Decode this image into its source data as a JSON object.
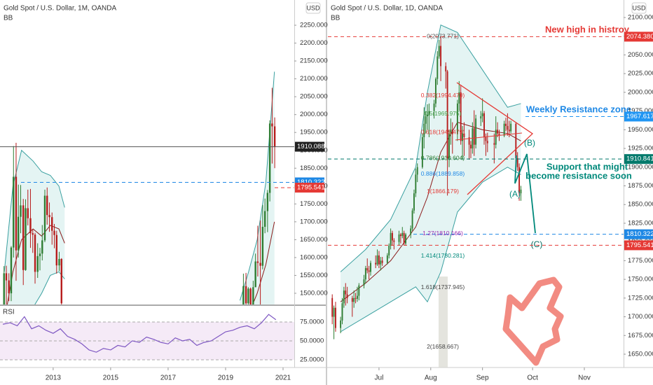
{
  "chart_data": [
    {
      "type": "candlestick",
      "title": "Gold Spot / U.S. Dollar, 1M, OANDA",
      "indicator": "BB",
      "currency": "USD",
      "up_color": "#2e7d32",
      "down_color": "#b71c1c",
      "x": [
        2011.21,
        2011.29,
        2011.37,
        2011.46,
        2011.54,
        2011.62,
        2011.71,
        2011.79,
        2011.87,
        2011.96,
        2012.04,
        2012.12,
        2012.21,
        2012.29,
        2012.37,
        2012.46,
        2012.54,
        2012.62,
        2012.71,
        2012.79,
        2012.87,
        2012.96,
        2013.04,
        2013.12,
        2013.21,
        2013.29,
        2019.46,
        2019.54,
        2019.62,
        2019.71,
        2019.79,
        2019.87,
        2019.96,
        2020.04,
        2020.12,
        2020.21,
        2020.29,
        2020.37,
        2020.46,
        2020.54,
        2020.62,
        2020.71
      ],
      "open": [
        1410,
        1439,
        1556,
        1536,
        1500,
        1628,
        1826,
        1620,
        1714,
        1746,
        1565,
        1738,
        1710,
        1668,
        1664,
        1560,
        1604,
        1611,
        1648,
        1773,
        1719,
        1713,
        1675,
        1663,
        1578,
        1596,
        1305,
        1409,
        1413,
        1520,
        1472,
        1513,
        1464,
        1517,
        1589,
        1585,
        1577,
        1686,
        1730,
        1781,
        1975,
        1967
      ],
      "high": [
        1448,
        1576,
        1577,
        1556,
        1632,
        1912,
        1921,
        1804,
        1803,
        1764,
        1763,
        1790,
        1792,
        1678,
        1669,
        1640,
        1627,
        1691,
        1790,
        1796,
        1754,
        1726,
        1694,
        1675,
        1616,
        1598,
        1439,
        1453,
        1555,
        1557,
        1517,
        1516,
        1535,
        1611,
        1689,
        1704,
        1747,
        1765,
        1789,
        1984,
        2075,
        1992
      ],
      "low": [
        1381,
        1420,
        1462,
        1478,
        1478,
        1600,
        1535,
        1600,
        1668,
        1523,
        1563,
        1690,
        1627,
        1613,
        1527,
        1543,
        1564,
        1592,
        1643,
        1692,
        1672,
        1636,
        1626,
        1555,
        1562,
        1321,
        1281,
        1381,
        1400,
        1459,
        1458,
        1445,
        1459,
        1517,
        1547,
        1451,
        1567,
        1668,
        1671,
        1757,
        1863,
        1850
      ],
      "close": [
        1439,
        1556,
        1536,
        1500,
        1628,
        1826,
        1620,
        1714,
        1746,
        1565,
        1738,
        1710,
        1668,
        1664,
        1560,
        1604,
        1611,
        1648,
        1773,
        1719,
        1713,
        1675,
        1663,
        1578,
        1596,
        1472,
        1409,
        1413,
        1520,
        1472,
        1513,
        1464,
        1517,
        1589,
        1585,
        1577,
        1686,
        1730,
        1781,
        1975,
        1967,
        1910
      ],
      "bands": {
        "x": [
          2011.3,
          2011.6,
          2011.9,
          2012.3,
          2012.6,
          2012.9,
          2013.2,
          2013.4,
          2016,
          2019.5,
          2019.8,
          2020.1,
          2020.4,
          2020.7
        ],
        "upper": [
          1560,
          1800,
          1900,
          1870,
          1840,
          1830,
          1800,
          1740,
          null,
          1480,
          1560,
          1650,
          1810,
          2120
        ],
        "basis": [
          1420,
          1560,
          1650,
          1680,
          1660,
          1690,
          1680,
          1640,
          null,
          1380,
          1440,
          1500,
          1580,
          1700
        ],
        "lower": [
          1280,
          1320,
          1370,
          1460,
          1500,
          1550,
          1560,
          1540,
          null,
          1280,
          1320,
          1350,
          1350,
          1280
        ]
      },
      "xlim": [
        2011.15,
        2021.39
      ],
      "xticks": [
        2013,
        2015,
        2017,
        2019,
        2021
      ],
      "ylim": [
        1468.6,
        2320.6
      ],
      "yticks": [
        {
          "value": 1500,
          "label": "1500.000"
        },
        {
          "value": 1550,
          "label": "1550.000"
        },
        {
          "value": 1600,
          "label": "1600.000"
        },
        {
          "value": 1650,
          "label": "1650.000"
        },
        {
          "value": 1700,
          "label": "1700.000"
        },
        {
          "value": 1750,
          "label": "1750.000"
        },
        {
          "value": 1800,
          "label": "1800.000"
        },
        {
          "value": 1850,
          "label": "1850.000"
        },
        {
          "value": 1900,
          "label": "1900.000"
        },
        {
          "value": 1950,
          "label": "1950.000"
        },
        {
          "value": 2000,
          "label": "2000.000"
        },
        {
          "value": 2050,
          "label": "2050.000"
        },
        {
          "value": 2100,
          "label": "2100.000"
        },
        {
          "value": 2150,
          "label": "2150.000"
        },
        {
          "value": 2200,
          "label": "2200.000"
        },
        {
          "value": 2250,
          "label": "2250.000"
        }
      ],
      "price_lines": [
        {
          "value": 1910.088,
          "color": "#555555",
          "label_color": "#222222",
          "dash": false
        },
        {
          "value": 1810.322,
          "color": "#1e88e5",
          "dash": true
        },
        {
          "value": 1795.541,
          "color": "#e53935",
          "dash": true
        }
      ],
      "rsi": {
        "title": "RSI",
        "color": "#7e57c2",
        "x": [
          2011.25,
          2011.5,
          2011.75,
          2012,
          2012.25,
          2012.5,
          2012.75,
          2013,
          2013.25,
          2013.5,
          2013.75,
          2014,
          2014.25,
          2014.5,
          2014.75,
          2015,
          2015.25,
          2015.5,
          2015.75,
          2016,
          2016.25,
          2016.5,
          2016.75,
          2017,
          2017.25,
          2017.5,
          2017.75,
          2018,
          2018.25,
          2018.5,
          2018.75,
          2019,
          2019.25,
          2019.5,
          2019.75,
          2020,
          2020.25,
          2020.5,
          2020.75
        ],
        "values": [
          72,
          74,
          70,
          82,
          66,
          70,
          64,
          60,
          66,
          56,
          52,
          46,
          38,
          35,
          40,
          38,
          44,
          42,
          50,
          48,
          55,
          52,
          48,
          46,
          54,
          50,
          52,
          44,
          48,
          50,
          56,
          62,
          64,
          68,
          70,
          66,
          74,
          85,
          78
        ],
        "ylim": [
          19.4,
          96.3
        ],
        "yticks": [
          {
            "value": 25,
            "label": "25.0000"
          },
          {
            "value": 50,
            "label": "50.0000"
          },
          {
            "value": 75,
            "label": "75.0000"
          }
        ]
      }
    },
    {
      "type": "candlestick",
      "title": "Gold Spot / U.S. Dollar, 1D, OANDA",
      "indicator": "BB",
      "currency": "USD",
      "up_color": "#2e7d32",
      "down_color": "#b71c1c",
      "x": [
        155,
        156,
        157,
        160,
        161,
        162,
        163,
        164,
        167,
        168,
        169,
        170,
        171,
        174,
        175,
        176,
        177,
        178,
        181,
        182,
        183,
        184,
        185,
        188,
        189,
        190,
        191,
        192,
        195,
        196,
        197,
        198,
        199,
        202,
        203,
        204,
        205,
        206,
        209,
        210,
        211,
        212,
        213,
        216,
        217,
        218,
        219,
        220,
        223,
        224,
        225,
        226,
        227,
        230,
        231,
        232,
        233,
        234,
        237,
        238,
        239,
        240,
        241,
        244,
        245,
        246,
        247,
        248,
        252,
        253,
        254,
        255,
        258,
        259,
        260,
        261,
        262,
        265,
        266,
        267,
        268
      ],
      "open": [
        1725,
        1700,
        1712,
        1685,
        1695,
        1718,
        1735,
        1730,
        1725,
        1720,
        1725,
        1724,
        1728,
        1742,
        1750,
        1765,
        1762,
        1760,
        1772,
        1770,
        1782,
        1770,
        1775,
        1772,
        1782,
        1795,
        1812,
        1802,
        1800,
        1810,
        1808,
        1812,
        1798,
        1810,
        1818,
        1842,
        1865,
        1890,
        1900,
        1940,
        1958,
        1968,
        1970,
        1975,
        1985,
        2018,
        2048,
        2062,
        2035,
        2028,
        1912,
        1945,
        1950,
        1944,
        1985,
        2000,
        1935,
        1945,
        1940,
        1930,
        1925,
        1952,
        1930,
        1965,
        1968,
        1972,
        1940,
        1935,
        1932,
        1930,
        1950,
        1945,
        1942,
        1958,
        1955,
        1950,
        1948,
        1958,
        1912,
        1900,
        1865
      ],
      "high": [
        1730,
        1715,
        1720,
        1700,
        1725,
        1740,
        1745,
        1740,
        1728,
        1735,
        1732,
        1740,
        1745,
        1756,
        1768,
        1778,
        1768,
        1775,
        1782,
        1790,
        1788,
        1780,
        1780,
        1785,
        1798,
        1818,
        1815,
        1805,
        1815,
        1812,
        1820,
        1815,
        1812,
        1822,
        1845,
        1870,
        1898,
        1905,
        1945,
        1980,
        1975,
        1984,
        1985,
        1990,
        2020,
        2055,
        2070,
        2075,
        2040,
        2030,
        1950,
        1965,
        1960,
        1990,
        2015,
        2010,
        1955,
        1960,
        1950,
        1935,
        1960,
        1976,
        1970,
        1975,
        1992,
        1975,
        1945,
        1946,
        1945,
        1968,
        1960,
        1950,
        1962,
        1966,
        1972,
        1962,
        1962,
        1960,
        1920,
        1905,
        1875
      ],
      "low": [
        1690,
        1670,
        1680,
        1678,
        1690,
        1712,
        1715,
        1718,
        1700,
        1712,
        1718,
        1720,
        1722,
        1738,
        1745,
        1758,
        1750,
        1755,
        1765,
        1768,
        1765,
        1762,
        1768,
        1770,
        1778,
        1790,
        1795,
        1790,
        1795,
        1798,
        1805,
        1795,
        1795,
        1805,
        1815,
        1838,
        1860,
        1880,
        1898,
        1925,
        1945,
        1950,
        1940,
        1965,
        1980,
        2010,
        2045,
        2015,
        2005,
        1862,
        1900,
        1930,
        1918,
        1935,
        1975,
        1930,
        1910,
        1915,
        1910,
        1912,
        1918,
        1915,
        1925,
        1955,
        1960,
        1930,
        1915,
        1920,
        1905,
        1925,
        1940,
        1935,
        1940,
        1948,
        1942,
        1940,
        1945,
        1900,
        1895,
        1855,
        1855
      ],
      "close": [
        1700,
        1712,
        1685,
        1695,
        1718,
        1735,
        1730,
        1725,
        1720,
        1725,
        1724,
        1728,
        1742,
        1750,
        1765,
        1762,
        1760,
        1772,
        1770,
        1782,
        1770,
        1775,
        1772,
        1782,
        1795,
        1812,
        1802,
        1800,
        1810,
        1808,
        1812,
        1798,
        1810,
        1818,
        1842,
        1865,
        1890,
        1900,
        1940,
        1958,
        1968,
        1970,
        1975,
        1985,
        2018,
        2048,
        2062,
        2035,
        2028,
        1912,
        1945,
        1950,
        1944,
        1985,
        2000,
        1935,
        1945,
        1940,
        1930,
        1925,
        1952,
        1930,
        1965,
        1968,
        1972,
        1940,
        1935,
        1932,
        1930,
        1950,
        1945,
        1942,
        1958,
        1955,
        1950,
        1948,
        1958,
        1912,
        1900,
        1865,
        1870
      ],
      "bands": {
        "x": [
          160,
          175,
          190,
          205,
          212,
          220,
          230,
          245,
          260,
          268
        ],
        "upper": [
          1760,
          1790,
          1830,
          1900,
          2000,
          2090,
          2080,
          2030,
          1980,
          1985
        ],
        "basis": [
          1720,
          1745,
          1775,
          1820,
          1860,
          1920,
          1960,
          1950,
          1945,
          1935
        ],
        "lower": [
          1680,
          1700,
          1720,
          1740,
          1720,
          1760,
          1840,
          1880,
          1900,
          1890
        ]
      },
      "xlim": [
        152.4,
        329.5
      ],
      "xticks": [
        {
          "value": 183,
          "label": "Jul"
        },
        {
          "value": 214,
          "label": "Aug"
        },
        {
          "value": 245,
          "label": "Sep"
        },
        {
          "value": 275,
          "label": "Oct"
        },
        {
          "value": 306,
          "label": "Nov"
        }
      ],
      "ylim": [
        1632.2,
        2123.4
      ],
      "yticks": [
        {
          "value": 1650,
          "label": "1650.000"
        },
        {
          "value": 1675,
          "label": "1675.000"
        },
        {
          "value": 1700,
          "label": "1700.000"
        },
        {
          "value": 1725,
          "label": "1725.000"
        },
        {
          "value": 1750,
          "label": "1750.000"
        },
        {
          "value": 1775,
          "label": "1775.000"
        },
        {
          "value": 1800,
          "label": "1800.000"
        },
        {
          "value": 1825,
          "label": "1825.000"
        },
        {
          "value": 1850,
          "label": "1850.000"
        },
        {
          "value": 1875,
          "label": "1875.000"
        },
        {
          "value": 1900,
          "label": "1900.000"
        },
        {
          "value": 1925,
          "label": "1925.000"
        },
        {
          "value": 1950,
          "label": "1950.000"
        },
        {
          "value": 1975,
          "label": "1975.000"
        },
        {
          "value": 2000,
          "label": "2000.000"
        },
        {
          "value": 2025,
          "label": "2025.000"
        },
        {
          "value": 2050,
          "label": "2050.000"
        },
        {
          "value": 2075,
          "label": "2075.000"
        },
        {
          "value": 2100,
          "label": "2100.000"
        }
      ],
      "price_lines": [
        {
          "value": 2074.38,
          "label": "2074.380",
          "color": "#e53935",
          "dash": true
        },
        {
          "value": 1967.617,
          "color": "#2196f3",
          "dash": true
        },
        {
          "value": 1910.841,
          "color": "#00796b",
          "dash": true
        },
        {
          "value": 1810.322,
          "color": "#1e88e5",
          "dash": true
        },
        {
          "value": 1795.541,
          "color": "#e53935",
          "dash": true
        }
      ],
      "fib": [
        {
          "label": "0(2073.771)",
          "value": 2073.771,
          "color": "#555555"
        },
        {
          "label": "0.382(1994.470)",
          "value": 1994.47,
          "color": "#e53935"
        },
        {
          "label": "0.5(1969.975)",
          "value": 1969.975,
          "color": "#43a047"
        },
        {
          "label": "0.618(1945.479)",
          "value": 1945.479,
          "color": "#e53935"
        },
        {
          "label": "0.786(1910.604)",
          "value": 1910.604,
          "color": "#2e7d32"
        },
        {
          "label": "0.886(1889.858)",
          "value": 1889.858,
          "color": "#1e88e5"
        },
        {
          "label": "1(1866.179)",
          "value": 1866.179,
          "color": "#e53935"
        },
        {
          "label": "1.27(1810.166)",
          "value": 1810.166,
          "color": "#9c27b0"
        },
        {
          "label": "1.414(1780.281)",
          "value": 1780.281,
          "color": "#00897b"
        },
        {
          "label": "1.618(1737.945)",
          "value": 1737.945,
          "color": "#444444"
        },
        {
          "label": "2(1658.667)",
          "value": 1658.667,
          "color": "#444444"
        }
      ],
      "annotations": [
        "New high in histroy",
        "Weekly Resistance zone",
        "Support that might",
        "become resistance soon"
      ],
      "waves": [
        "(A)",
        "(B)",
        "(C)"
      ]
    }
  ]
}
